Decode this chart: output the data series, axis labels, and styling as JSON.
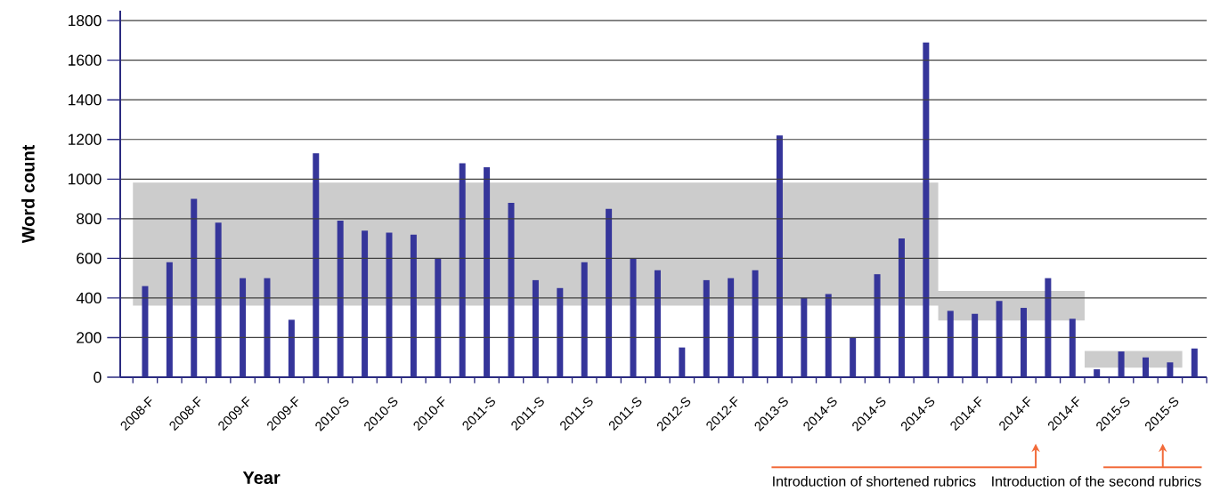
{
  "chart_data": {
    "type": "bar",
    "xlabel": "Year",
    "ylabel": "Word count",
    "categories": [
      "2008-F",
      null,
      "2008-F",
      null,
      "2009-F",
      null,
      "2009-F",
      null,
      "2010-S",
      null,
      "2010-S",
      null,
      "2010-F",
      null,
      "2011-S",
      null,
      "2011-S",
      null,
      "2011-S",
      null,
      "2011-S",
      null,
      "2012-S",
      null,
      "2012-F",
      null,
      "2013-S",
      null,
      "2014-S",
      null,
      "2014-S",
      null,
      "2014-S",
      null,
      "2014-F",
      null,
      "2014-F",
      null,
      "2014-F",
      null,
      "2015-S",
      null,
      "2015-S",
      null
    ],
    "series": [
      {
        "type": "area",
        "color": "#cccccc",
        "values": [
          null,
          null,
          null,
          null,
          null,
          null,
          null,
          null,
          null,
          null,
          null,
          null,
          null,
          null,
          null,
          null,
          null,
          null,
          null,
          null,
          null,
          null,
          null,
          null,
          null,
          null,
          null,
          null,
          null,
          null,
          null,
          null,
          null,
          null,
          null,
          null,
          null,
          null,
          null,
          null,
          null,
          null,
          null,
          null
        ],
        "lower": [
          362,
          362,
          362,
          362,
          362,
          362,
          362,
          362,
          362,
          362,
          362,
          362,
          362,
          362,
          362,
          362,
          362,
          362,
          362,
          362,
          362,
          362,
          362,
          362,
          362,
          362,
          362,
          362,
          362,
          362,
          362,
          362,
          362,
          286,
          286,
          286,
          286,
          286,
          286,
          48,
          48,
          48,
          48,
          48
        ],
        "upper": [
          982,
          982,
          982,
          982,
          982,
          982,
          982,
          982,
          982,
          982,
          982,
          982,
          982,
          982,
          982,
          982,
          982,
          982,
          982,
          982,
          982,
          982,
          982,
          982,
          982,
          982,
          982,
          982,
          982,
          982,
          982,
          982,
          982,
          436,
          436,
          436,
          436,
          436,
          436,
          132,
          132,
          132,
          132,
          132
        ]
      },
      {
        "color": "#35359a",
        "values": [
          460,
          580,
          900,
          780,
          500,
          500,
          290,
          1130,
          790,
          740,
          730,
          720,
          600,
          1080,
          1060,
          880,
          490,
          450,
          580,
          850,
          600,
          540,
          150,
          490,
          500,
          540,
          1220,
          400,
          420,
          200,
          520,
          700,
          1690,
          335,
          320,
          385,
          350,
          500,
          295,
          40,
          130,
          100,
          75,
          145
        ]
      }
    ],
    "ylim": [
      0,
      1850
    ],
    "yticks": [
      0,
      200,
      400,
      600,
      800,
      1000,
      1200,
      1400,
      1600,
      1800
    ],
    "grid": "y",
    "annotations": [
      "Introduction of shortened rubrics",
      "Introduction of the second rubrics"
    ]
  }
}
